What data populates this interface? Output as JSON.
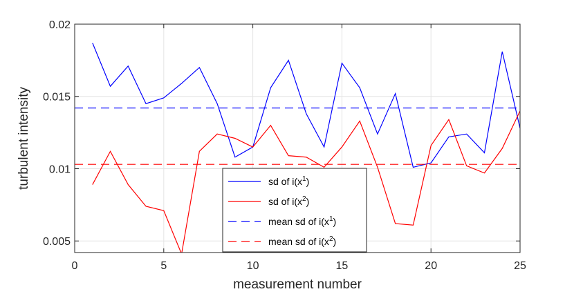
{
  "chart_data": {
    "type": "line",
    "title": "",
    "xlabel": "measurement number",
    "ylabel": "turbulent intensity",
    "xlim": [
      0,
      25
    ],
    "ylim": [
      0.0042,
      0.02
    ],
    "xticks": [
      0,
      5,
      10,
      15,
      20,
      25
    ],
    "xtick_labels": [
      "0",
      "5",
      "10",
      "15",
      "20",
      "25"
    ],
    "yticks": [
      0.005,
      0.01,
      0.015,
      0.02
    ],
    "ytick_labels": [
      "0.005",
      "0.01",
      "0.015",
      "0.02"
    ],
    "grid": true,
    "legend_location": "lower-center",
    "x": [
      1,
      2,
      3,
      4,
      5,
      6,
      7,
      8,
      9,
      10,
      11,
      12,
      13,
      14,
      15,
      16,
      17,
      18,
      19,
      20,
      21,
      22,
      23,
      24,
      25
    ],
    "series": [
      {
        "name": "sd of i(x¹)",
        "base": "sd of i(x",
        "sup": "1",
        "color": "#0000ff",
        "dash": "solid",
        "values": [
          0.0187,
          0.0157,
          0.0171,
          0.0145,
          0.0149,
          0.0159,
          0.017,
          0.0145,
          0.0108,
          0.0115,
          0.0156,
          0.0175,
          0.0138,
          0.0115,
          0.0173,
          0.0156,
          0.0124,
          0.0152,
          0.0101,
          0.0104,
          0.0122,
          0.0124,
          0.0111,
          0.0181,
          0.0128
        ]
      },
      {
        "name": "sd of i(x²)",
        "base": "sd of i(x",
        "sup": "2",
        "color": "#ff0000",
        "dash": "solid",
        "values": [
          0.0089,
          0.0112,
          0.0089,
          0.0074,
          0.0071,
          0.0041,
          0.0112,
          0.0124,
          0.0121,
          0.0115,
          0.013,
          0.0109,
          0.0108,
          0.0101,
          0.0115,
          0.0133,
          0.0101,
          0.0062,
          0.0061,
          0.0116,
          0.0134,
          0.0102,
          0.0097,
          0.0114,
          0.014
        ]
      },
      {
        "name": "mean sd of i(x¹)",
        "base": "mean sd of i(x",
        "sup": "1",
        "color": "#0000ff",
        "dash": "dashed",
        "x": [
          0,
          25
        ],
        "values": [
          0.0142,
          0.0142
        ]
      },
      {
        "name": "mean sd of i(x²)",
        "base": "mean sd of i(x",
        "sup": "2",
        "color": "#ff0000",
        "dash": "dashed",
        "x": [
          0,
          25
        ],
        "values": [
          0.0103,
          0.0103
        ]
      }
    ]
  }
}
